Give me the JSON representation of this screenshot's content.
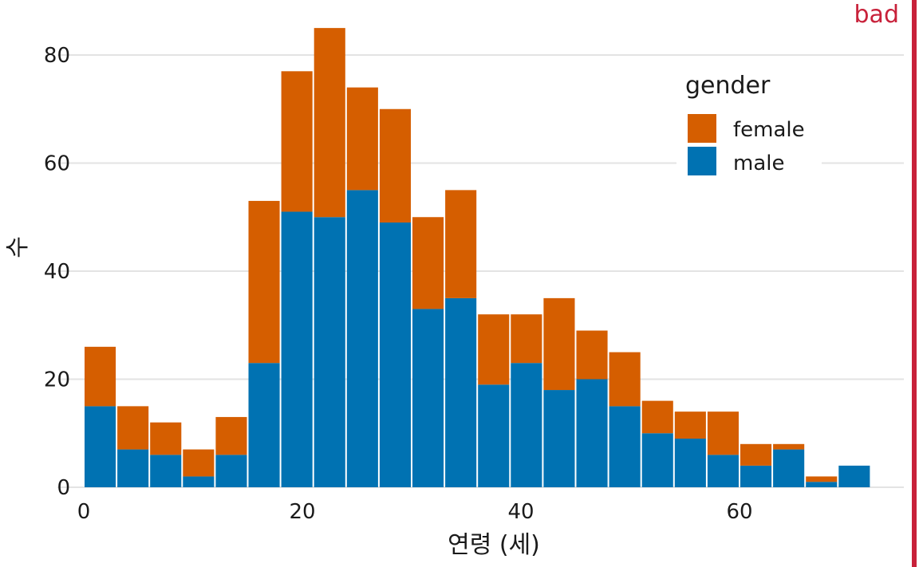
{
  "badge": {
    "label": "bad",
    "color": "#c8213a"
  },
  "colors": {
    "female": "#d55e00",
    "male": "#0072b2",
    "grid": "#e3e3e3"
  },
  "chart_data": {
    "type": "bar",
    "stacked": true,
    "title": "",
    "xlabel": "연령 (세)",
    "ylabel": "수",
    "x_ticks": [
      0,
      20,
      40,
      60
    ],
    "y_ticks": [
      0,
      20,
      40,
      60,
      80
    ],
    "xlim": [
      0,
      75
    ],
    "ylim": [
      0,
      85
    ],
    "bin_width": 3,
    "x": [
      1.5,
      4.5,
      7.5,
      10.5,
      13.5,
      16.5,
      19.5,
      22.5,
      25.5,
      28.5,
      31.5,
      34.5,
      37.5,
      40.5,
      43.5,
      46.5,
      49.5,
      52.5,
      55.5,
      58.5,
      61.5,
      64.5,
      67.5,
      70.5
    ],
    "series": [
      {
        "name": "male",
        "values": [
          15,
          7,
          6,
          2,
          6,
          23,
          51,
          50,
          55,
          49,
          33,
          35,
          19,
          23,
          18,
          20,
          15,
          10,
          9,
          6,
          4,
          7,
          1,
          4
        ]
      },
      {
        "name": "female",
        "values": [
          11,
          8,
          6,
          5,
          7,
          30,
          26,
          35,
          19,
          21,
          17,
          20,
          13,
          9,
          17,
          9,
          10,
          6,
          5,
          8,
          4,
          1,
          1,
          0
        ]
      }
    ],
    "legend": {
      "title": "gender",
      "position": "top-right",
      "entries": [
        {
          "label": "female",
          "color": "#d55e00"
        },
        {
          "label": "male",
          "color": "#0072b2"
        }
      ]
    },
    "grid": true
  }
}
